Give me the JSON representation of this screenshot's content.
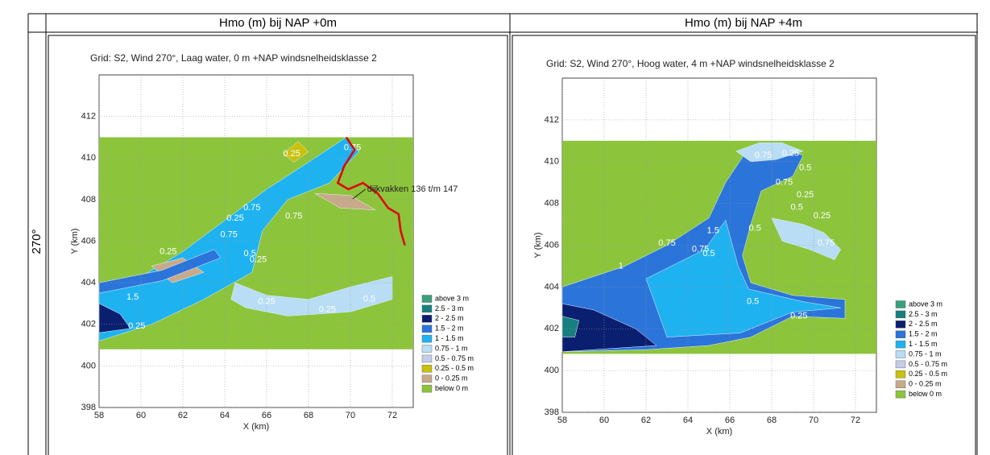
{
  "table": {
    "header": [
      "Hmo (m) bij NAP +0m",
      "Hmo (m) bij NAP +4m"
    ],
    "row_label": "270°",
    "plots": [
      {
        "title": "Grid: S2, Wind 270°, Laag water, 0 m +NAP windsnelheidsklasse 2",
        "xlabel": "X (km)",
        "ylabel": "Y (km)",
        "xlim": [
          58,
          73
        ],
        "ylim": [
          398,
          414
        ],
        "xticks": [
          58,
          60,
          62,
          64,
          66,
          68,
          70,
          72
        ],
        "yticks": [
          398,
          400,
          402,
          404,
          406,
          408,
          410,
          412
        ],
        "annotation": "dijkvakken 136 t/m 147",
        "contour_labels": [
          "0.25",
          "0.75",
          "0.25",
          "0.75",
          "0.25",
          "0.75",
          "0.5",
          "0.25",
          "1.5",
          "0.25",
          "0.75",
          "0.25",
          "0.5",
          "0.25"
        ]
      },
      {
        "title": "Grid: S2, Wind 270°, Hoog water, 4 m +NAP windsnelheidsklasse 2",
        "xlabel": "X (km)",
        "ylabel": "Y (km)",
        "xlim": [
          58,
          73
        ],
        "ylim": [
          398,
          414
        ],
        "xticks": [
          58,
          60,
          62,
          64,
          66,
          68,
          70,
          72
        ],
        "yticks": [
          398,
          400,
          402,
          404,
          406,
          408,
          410,
          412
        ],
        "contour_labels": [
          "0.75",
          "0.25",
          "0.5",
          "0.75",
          "0.25",
          "0.5",
          "0.25",
          "0.75",
          "1.5",
          "0.5",
          "0.75",
          "0.5",
          "1",
          "0.75",
          "0.5",
          "0.25"
        ]
      }
    ],
    "legend": [
      {
        "label": "above 3 m",
        "color": "#3aa07c"
      },
      {
        "label": "2.5 - 3 m",
        "color": "#17807e"
      },
      {
        "label": "2 - 2.5 m",
        "color": "#0b1f70"
      },
      {
        "label": "1.5 - 2 m",
        "color": "#2b74da"
      },
      {
        "label": "1 - 1.5 m",
        "color": "#1fb2f0"
      },
      {
        "label": "0.75 - 1 m",
        "color": "#b8ddf5"
      },
      {
        "label": "0.5 - 0.75 m",
        "color": "#c3cde8"
      },
      {
        "label": "0.25 - 0.5 m",
        "color": "#c9c10a"
      },
      {
        "label": "0 - 0.25 m",
        "color": "#c8aa8a"
      },
      {
        "label": "below 0 m",
        "color": "#8cc43c"
      }
    ]
  }
}
